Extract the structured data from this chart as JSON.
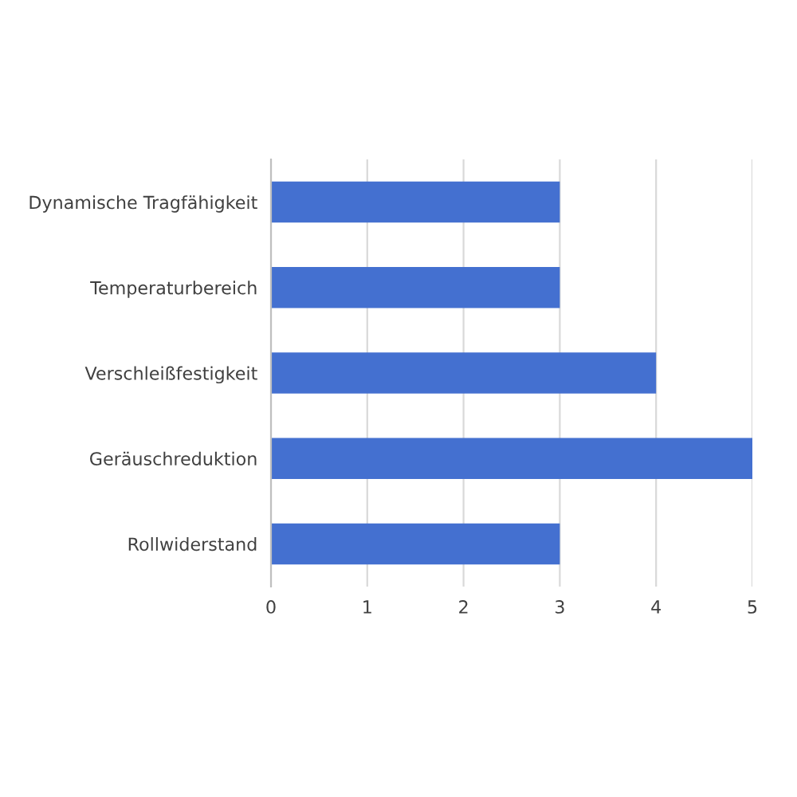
{
  "chart_data": {
    "type": "bar",
    "orientation": "horizontal",
    "categories": [
      "Dynamische Tragfähigkeit",
      "Temperaturbereich",
      "Verschleißfestigkeit",
      "Geräuschreduktion",
      "Rollwiderstand"
    ],
    "values": [
      3,
      3,
      4,
      5,
      3
    ],
    "color": "#4470d0",
    "xlim": [
      0,
      5
    ],
    "xticks": [
      0,
      1,
      2,
      3,
      4,
      5
    ],
    "grid": "x",
    "legend": false
  }
}
